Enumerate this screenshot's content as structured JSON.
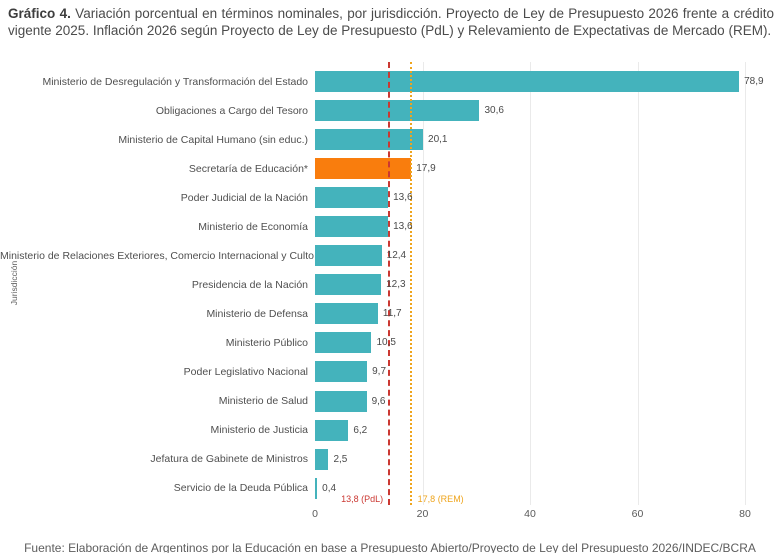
{
  "title": {
    "prefix": "Gráfico 4.",
    "text": " Variación porcentual en términos nominales, por jurisdicción. Proyecto de Ley de Presupuesto 2026 frente a crédito vigente 2025. Inflación 2026 según Proyecto de Ley de Presupuesto (PdL) y Relevamiento de Expectativas de Mercado (REM)."
  },
  "chart_data": {
    "type": "bar",
    "orientation": "horizontal",
    "title": "Variación porcentual en términos nominales, por jurisdicción",
    "xlabel": "",
    "ylabel": "Jurisdicción",
    "xlim": [
      0,
      80
    ],
    "xticks": [
      "0",
      "20",
      "40",
      "60",
      "80"
    ],
    "xtick_values": [
      0,
      20,
      40,
      60,
      80
    ],
    "grid": true,
    "bar_color": "#44B3BC",
    "highlight_color": "#F97D0D",
    "highlight_index": 3,
    "categories": [
      "Ministerio de Desregulación y Transformación del Estado",
      "Obligaciones a Cargo del Tesoro",
      "Ministerio de Capital Humano (sin educ.)",
      "Secretaría de Educación*",
      "Poder Judicial de la Nación",
      "Ministerio de Economía",
      "Ministerio de Relaciones Exteriores, Comercio Internacional y Culto",
      "Presidencia de la Nación",
      "Ministerio de Defensa",
      "Ministerio Público",
      "Poder Legislativo Nacional",
      "Ministerio de Salud",
      "Ministerio de Justicia",
      "Jefatura de Gabinete de Ministros",
      "Servicio de la Deuda Pública"
    ],
    "values": [
      78.9,
      30.6,
      20.1,
      17.9,
      13.6,
      13.6,
      12.4,
      12.3,
      11.7,
      10.5,
      9.7,
      9.6,
      6.2,
      2.5,
      0.4
    ],
    "value_labels": [
      "78,9",
      "30,6",
      "20,1",
      "17,9",
      "13,6",
      "13,6",
      "12,4",
      "12,3",
      "11,7",
      "10,5",
      "9,7",
      "9,6",
      "6,2",
      "2,5",
      "0,4"
    ],
    "reference_lines": [
      {
        "value": 13.8,
        "label": "13,8 (PdL)",
        "color": "#CB3832",
        "style": "dashed",
        "label_side": "left"
      },
      {
        "value": 17.8,
        "label": "17,8 (REM)",
        "color": "#EFA51D",
        "style": "dotted",
        "label_side": "right"
      }
    ]
  },
  "footer": "Fuente: Elaboración de Argentinos por la Educación en base a Presupuesto Abierto/Proyecto de Ley del Presupuesto 2026/INDEC/BCRA"
}
